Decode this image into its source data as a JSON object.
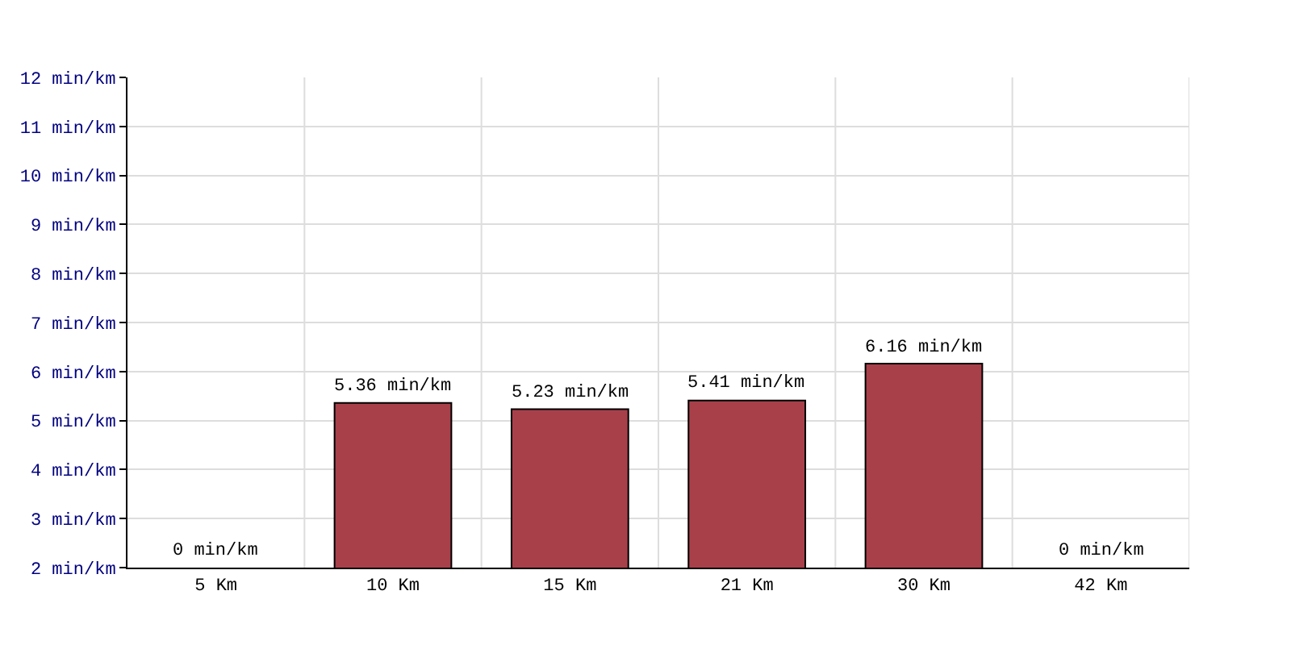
{
  "chart_data": {
    "type": "bar",
    "categories": [
      "5 Km",
      "10 Km",
      "15 Km",
      "21 Km",
      "30 Km",
      "42 Km"
    ],
    "values": [
      null,
      5.36,
      5.23,
      5.41,
      6.16,
      null
    ],
    "value_labels": [
      "0 min/km",
      "5.36 min/km",
      "5.23 min/km",
      "5.41 min/km",
      "6.16 min/km",
      "0 min/km"
    ],
    "color": "#a8404a",
    "ylim": [
      2,
      12
    ],
    "yticks": [
      {
        "value": 2,
        "label": "2 min/km"
      },
      {
        "value": 3,
        "label": "3 min/km"
      },
      {
        "value": 4,
        "label": "4 min/km"
      },
      {
        "value": 5,
        "label": "5 min/km"
      },
      {
        "value": 6,
        "label": "6 min/km"
      },
      {
        "value": 7,
        "label": "7 min/km"
      },
      {
        "value": 8,
        "label": "8 min/km"
      },
      {
        "value": 9,
        "label": "9 min/km"
      },
      {
        "value": 10,
        "label": "10 min/km"
      },
      {
        "value": 11,
        "label": "11 min/km"
      },
      {
        "value": 12,
        "label": "12 min/km"
      }
    ],
    "grid": true,
    "legend": false
  }
}
